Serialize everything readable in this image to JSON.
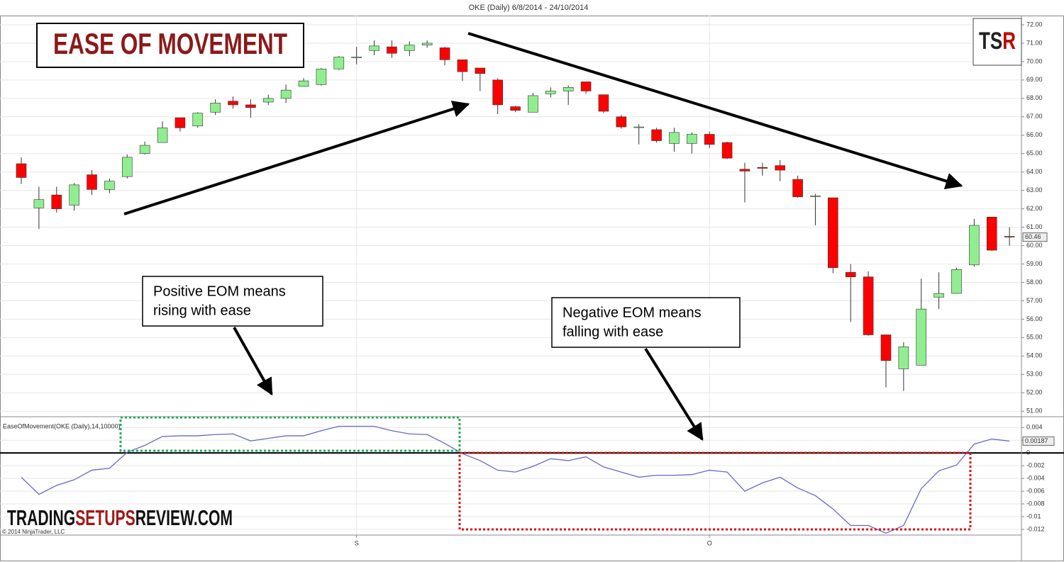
{
  "chart_data": [
    {
      "type": "candlestick",
      "title": "OKE (Daily)  6/8/2014 - 24/10/2014",
      "categories": [
        null,
        null,
        null,
        null,
        null,
        null,
        null,
        null,
        null,
        null,
        null,
        null,
        null,
        null,
        null,
        null,
        null,
        null,
        null,
        "S",
        null,
        null,
        null,
        null,
        null,
        null,
        null,
        null,
        null,
        null,
        null,
        null,
        null,
        null,
        null,
        null,
        null,
        null,
        null,
        "O",
        null,
        null,
        null,
        null,
        null,
        null,
        null,
        null,
        null,
        null,
        null,
        null,
        null,
        null,
        null,
        null,
        null
      ],
      "open": [
        64.45,
        62.05,
        62.75,
        62.2,
        63.85,
        63.05,
        63.75,
        65.0,
        65.6,
        66.95,
        66.5,
        67.25,
        67.85,
        67.65,
        67.8,
        68.0,
        68.65,
        68.75,
        69.6,
        70.25,
        70.6,
        70.8,
        70.6,
        70.9,
        70.75,
        70.1,
        69.65,
        69.0,
        67.55,
        67.25,
        68.25,
        68.4,
        68.9,
        68.2,
        67.0,
        66.45,
        66.3,
        65.55,
        65.55,
        66.05,
        65.6,
        64.15,
        64.25,
        64.35,
        63.6,
        62.7,
        62.6,
        58.55,
        58.3,
        55.15,
        53.3,
        53.5,
        57.2,
        57.4,
        58.95,
        61.55,
        60.5
      ],
      "high": [
        64.8,
        63.2,
        63.2,
        63.4,
        64.1,
        63.65,
        64.95,
        65.65,
        66.75,
        66.95,
        67.25,
        67.95,
        68.1,
        67.95,
        68.2,
        68.75,
        69.1,
        69.65,
        70.3,
        70.8,
        71.15,
        71.15,
        71.1,
        71.15,
        70.8,
        70.1,
        69.65,
        69.1,
        67.6,
        68.3,
        68.6,
        68.7,
        68.9,
        68.2,
        67.1,
        66.6,
        66.4,
        66.4,
        66.15,
        66.2,
        65.65,
        64.5,
        64.5,
        64.65,
        63.8,
        62.8,
        62.6,
        59.0,
        58.6,
        55.15,
        54.75,
        58.2,
        58.55,
        58.8,
        61.45,
        61.55,
        61.0
      ],
      "low": [
        63.35,
        60.9,
        61.8,
        61.9,
        62.75,
        62.85,
        63.65,
        64.95,
        65.6,
        66.2,
        66.4,
        67.1,
        67.45,
        66.95,
        67.65,
        67.75,
        68.65,
        68.7,
        69.55,
        69.85,
        70.35,
        70.2,
        70.3,
        70.75,
        69.8,
        68.95,
        68.4,
        67.15,
        67.25,
        67.25,
        68.05,
        67.65,
        68.25,
        67.2,
        66.35,
        65.5,
        65.6,
        65.1,
        65.0,
        65.3,
        64.7,
        62.35,
        63.8,
        63.5,
        62.6,
        61.1,
        58.5,
        55.85,
        55.1,
        52.3,
        52.1,
        53.5,
        56.55,
        57.4,
        58.85,
        59.7,
        60.0
      ],
      "close": [
        63.7,
        62.5,
        62.0,
        63.3,
        63.05,
        63.5,
        64.8,
        65.45,
        66.4,
        66.4,
        67.2,
        67.75,
        67.65,
        67.5,
        68.0,
        68.45,
        68.95,
        69.6,
        70.25,
        70.25,
        70.85,
        70.45,
        70.9,
        71.0,
        70.1,
        69.45,
        69.35,
        67.65,
        67.35,
        68.15,
        68.4,
        68.6,
        68.4,
        67.3,
        66.45,
        66.45,
        65.7,
        66.15,
        66.05,
        65.5,
        64.75,
        64.05,
        64.2,
        64.1,
        62.65,
        62.7,
        58.8,
        58.3,
        55.15,
        53.75,
        54.5,
        56.55,
        57.4,
        58.7,
        61.1,
        59.75,
        60.46
      ],
      "up_color": "#90ee90",
      "down_color": "#ff0000",
      "ylim": [
        50.7,
        72.5
      ],
      "yticks": [
        {
          "value": 51,
          "label": "51.00"
        },
        {
          "value": 52,
          "label": "52.00"
        },
        {
          "value": 53,
          "label": "53.00"
        },
        {
          "value": 54,
          "label": "54.00"
        },
        {
          "value": 55,
          "label": "55.00"
        },
        {
          "value": 56,
          "label": "56.00"
        },
        {
          "value": 57,
          "label": "57.00"
        },
        {
          "value": 58,
          "label": "58.00"
        },
        {
          "value": 59,
          "label": "59.00"
        },
        {
          "value": 60,
          "label": "60.00"
        },
        {
          "value": 61,
          "label": "61.00"
        },
        {
          "value": 62,
          "label": "62.00"
        },
        {
          "value": 63,
          "label": "63.00"
        },
        {
          "value": 64,
          "label": "64.00"
        },
        {
          "value": 65,
          "label": "65.00"
        },
        {
          "value": 66,
          "label": "66.00"
        },
        {
          "value": 67,
          "label": "67.00"
        },
        {
          "value": 68,
          "label": "68.00"
        },
        {
          "value": 69,
          "label": "69.00"
        },
        {
          "value": 70,
          "label": "70.00"
        },
        {
          "value": 71,
          "label": "71.00"
        },
        {
          "value": 72,
          "label": "72.00"
        }
      ],
      "grid": true
    },
    {
      "type": "line",
      "title": "EaseOfMovement(OKE (Daily),14,10000)",
      "values": [
        -0.0038,
        -0.0065,
        -0.0051,
        -0.0042,
        -0.0027,
        -0.0024,
        0.0001,
        0.0012,
        0.0026,
        0.0027,
        0.0027,
        0.0029,
        0.003,
        0.0019,
        0.0023,
        0.0027,
        0.0027,
        0.0035,
        0.0042,
        0.0042,
        0.0042,
        0.0035,
        0.003,
        0.0029,
        0.0015,
        -0.0001,
        -0.0012,
        -0.0027,
        -0.003,
        -0.0021,
        -0.0009,
        -0.0012,
        -0.0006,
        -0.0022,
        -0.003,
        -0.0038,
        -0.0035,
        -0.0035,
        -0.0034,
        -0.0027,
        -0.003,
        -0.006,
        -0.0047,
        -0.0038,
        -0.0055,
        -0.0067,
        -0.0088,
        -0.0114,
        -0.0114,
        -0.0126,
        -0.0114,
        -0.0056,
        -0.0028,
        -0.0019,
        0.0014,
        0.0022,
        0.00187
      ],
      "color": "#6666cc",
      "ylim": [
        -0.0129,
        0.0057
      ],
      "yticks": [
        0.004,
        0.002,
        0,
        -0.002,
        -0.004,
        -0.006,
        -0.008,
        -0.01,
        -0.012
      ],
      "zero_line": true,
      "grid": true
    }
  ],
  "annotations": {
    "heading": "EASE OF MOVEMENT",
    "logo": [
      "TS",
      "R"
    ],
    "callouts": [
      [
        "Positive EOM means",
        "rising with ease"
      ],
      [
        "Negative EOM means",
        "falling with ease"
      ]
    ],
    "brand": [
      "TRADING",
      "SETUPS",
      "REVIEW.COM"
    ],
    "copyright": "© 2014 NinjaTrader, LLC"
  }
}
